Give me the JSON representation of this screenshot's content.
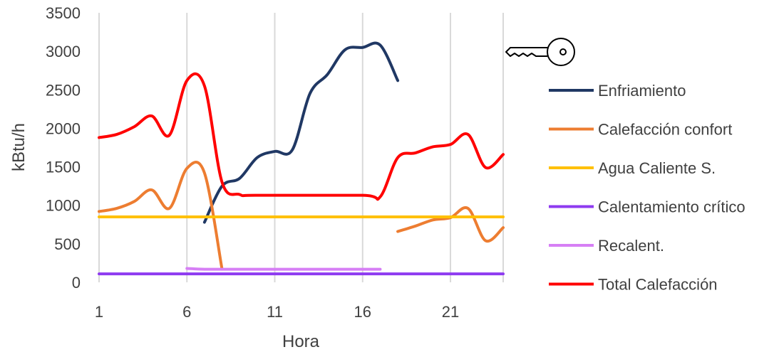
{
  "chart_data": {
    "type": "line",
    "xlabel": "Hora",
    "ylabel": "kBtu/h",
    "xlim": [
      1,
      24
    ],
    "ylim": [
      0,
      3500
    ],
    "x_ticks": [
      1,
      6,
      11,
      16,
      21
    ],
    "y_ticks": [
      0,
      500,
      1000,
      1500,
      2000,
      2500,
      3000,
      3500
    ],
    "grid": "vertical",
    "legend_position": "right",
    "series": [
      {
        "name": "Enfriamiento",
        "color": "#203864",
        "points": [
          [
            7,
            780
          ],
          [
            8,
            1250
          ],
          [
            9,
            1350
          ],
          [
            10,
            1620
          ],
          [
            11,
            1700
          ],
          [
            12,
            1720
          ],
          [
            13,
            2450
          ],
          [
            14,
            2700
          ],
          [
            15,
            3020
          ],
          [
            16,
            3050
          ],
          [
            17,
            3080
          ],
          [
            18,
            2620
          ]
        ]
      },
      {
        "name": "Calefacción confort",
        "color": "#ED7D31",
        "segments": [
          [
            [
              1,
              920
            ],
            [
              2,
              960
            ],
            [
              3,
              1050
            ],
            [
              4,
              1200
            ],
            [
              5,
              960
            ],
            [
              6,
              1480
            ],
            [
              7,
              1420
            ],
            [
              8,
              170
            ]
          ],
          [
            [
              18,
              660
            ],
            [
              19,
              730
            ],
            [
              20,
              810
            ],
            [
              21,
              840
            ],
            [
              22,
              960
            ],
            [
              23,
              540
            ],
            [
              24,
              710
            ]
          ]
        ]
      },
      {
        "name": "Agua Caliente S.",
        "color": "#FFC000",
        "points": [
          [
            1,
            850
          ],
          [
            24,
            850
          ]
        ]
      },
      {
        "name": "Calentamiento crítico",
        "color": "#8E3BF0",
        "points": [
          [
            1,
            110
          ],
          [
            24,
            110
          ]
        ]
      },
      {
        "name": "Recalent.",
        "color": "#D67FF5",
        "points": [
          [
            6,
            180
          ],
          [
            7,
            170
          ],
          [
            8,
            170
          ],
          [
            17,
            170
          ]
        ]
      },
      {
        "name": "Total Calefacción",
        "color": "#FF0000",
        "points": [
          [
            1,
            1880
          ],
          [
            2,
            1920
          ],
          [
            3,
            2020
          ],
          [
            4,
            2160
          ],
          [
            5,
            1910
          ],
          [
            6,
            2620
          ],
          [
            7,
            2550
          ],
          [
            8,
            1300
          ],
          [
            9,
            1140
          ],
          [
            10,
            1130
          ],
          [
            16,
            1130
          ],
          [
            17,
            1110
          ],
          [
            18,
            1620
          ],
          [
            19,
            1680
          ],
          [
            20,
            1760
          ],
          [
            21,
            1790
          ],
          [
            22,
            1920
          ],
          [
            23,
            1490
          ],
          [
            24,
            1660
          ]
        ]
      }
    ],
    "icon": "key-icon"
  }
}
